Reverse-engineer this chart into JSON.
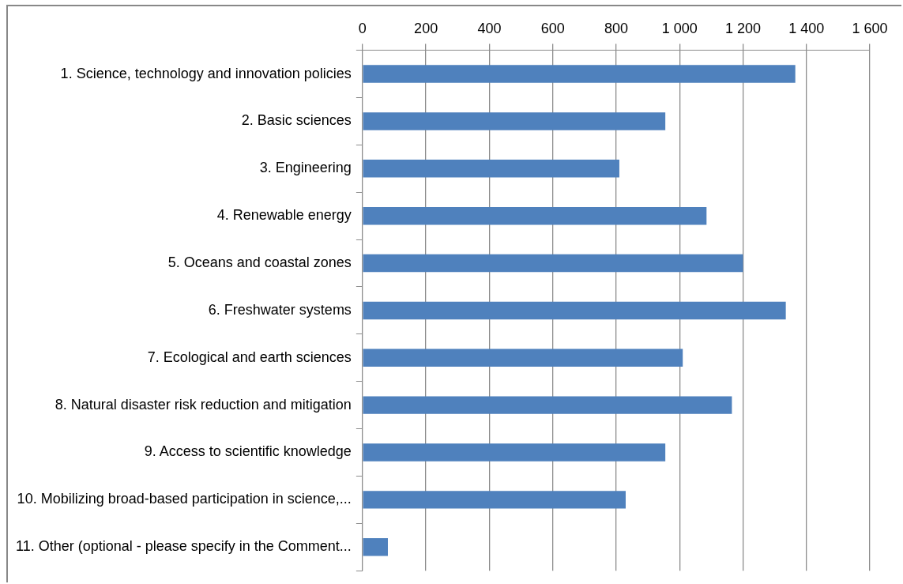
{
  "chart_data": {
    "type": "bar",
    "orientation": "horizontal",
    "categories": [
      "1. Science, technology and innovation policies",
      "2. Basic sciences",
      "3. Engineering",
      "4. Renewable energy",
      "5. Oceans and coastal zones",
      "6. Freshwater systems",
      "7. Ecological and earth sciences",
      "8. Natural disaster risk reduction and mitigation",
      "9. Access to scientific knowledge",
      "10. Mobilizing broad-based participation in science,...",
      "11. Other (optional - please specify in the Comment..."
    ],
    "values": [
      1365,
      955,
      810,
      1085,
      1200,
      1335,
      1010,
      1165,
      955,
      830,
      80
    ],
    "color": "#4f81bd",
    "xlim": [
      0,
      1600
    ],
    "xticks": [
      0,
      200,
      400,
      600,
      800,
      {
        "value": 1000,
        "label": "1 000"
      },
      {
        "value": 1200,
        "label": "1 200"
      },
      {
        "value": 1400,
        "label": "1 400"
      },
      {
        "value": 1600,
        "label": "1 600"
      }
    ],
    "grid": "x"
  }
}
